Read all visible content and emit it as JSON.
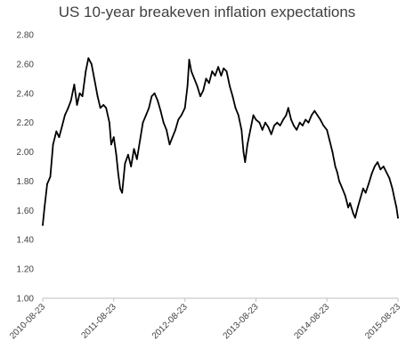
{
  "chart_data": {
    "type": "line",
    "title": "US 10-year breakeven inflation expectations",
    "xlabel": "",
    "ylabel": "",
    "ylim": [
      1.0,
      2.8
    ],
    "yticks": [
      "1.00",
      "1.20",
      "1.40",
      "1.60",
      "1.80",
      "2.00",
      "2.20",
      "2.40",
      "2.60",
      "2.80"
    ],
    "xticks": [
      "2010-08-23",
      "2011-08-23",
      "2012-08-23",
      "2013-08-23",
      "2014-08-23",
      "2015-08-23"
    ],
    "xlim": [
      "2010-08-23",
      "2015-08-23"
    ],
    "grid": false,
    "legend": "none",
    "series": [
      {
        "color": "#000000",
        "points": [
          [
            "2010-08-23",
            1.5
          ],
          [
            "2010-09-01",
            1.62
          ],
          [
            "2010-09-15",
            1.78
          ],
          [
            "2010-10-01",
            1.83
          ],
          [
            "2010-10-15",
            2.05
          ],
          [
            "2010-11-01",
            2.14
          ],
          [
            "2010-11-15",
            2.1
          ],
          [
            "2010-12-01",
            2.18
          ],
          [
            "2010-12-15",
            2.25
          ],
          [
            "2011-01-01",
            2.3
          ],
          [
            "2011-01-15",
            2.35
          ],
          [
            "2011-02-01",
            2.46
          ],
          [
            "2011-02-15",
            2.32
          ],
          [
            "2011-03-01",
            2.4
          ],
          [
            "2011-03-15",
            2.38
          ],
          [
            "2011-04-01",
            2.55
          ],
          [
            "2011-04-15",
            2.64
          ],
          [
            "2011-05-01",
            2.6
          ],
          [
            "2011-05-15",
            2.5
          ],
          [
            "2011-06-01",
            2.38
          ],
          [
            "2011-06-15",
            2.3
          ],
          [
            "2011-07-01",
            2.32
          ],
          [
            "2011-07-15",
            2.3
          ],
          [
            "2011-08-01",
            2.2
          ],
          [
            "2011-08-10",
            2.05
          ],
          [
            "2011-08-23",
            2.1
          ],
          [
            "2011-09-05",
            1.98
          ],
          [
            "2011-09-15",
            1.85
          ],
          [
            "2011-09-25",
            1.75
          ],
          [
            "2011-10-05",
            1.72
          ],
          [
            "2011-10-20",
            1.92
          ],
          [
            "2011-11-05",
            1.98
          ],
          [
            "2011-11-20",
            1.9
          ],
          [
            "2011-12-05",
            2.02
          ],
          [
            "2011-12-20",
            1.95
          ],
          [
            "2012-01-05",
            2.08
          ],
          [
            "2012-01-20",
            2.2
          ],
          [
            "2012-02-05",
            2.25
          ],
          [
            "2012-02-20",
            2.3
          ],
          [
            "2012-03-05",
            2.38
          ],
          [
            "2012-03-20",
            2.4
          ],
          [
            "2012-04-05",
            2.35
          ],
          [
            "2012-04-20",
            2.28
          ],
          [
            "2012-05-05",
            2.2
          ],
          [
            "2012-05-20",
            2.15
          ],
          [
            "2012-06-05",
            2.05
          ],
          [
            "2012-06-20",
            2.1
          ],
          [
            "2012-07-05",
            2.15
          ],
          [
            "2012-07-20",
            2.22
          ],
          [
            "2012-08-05",
            2.25
          ],
          [
            "2012-08-23",
            2.3
          ],
          [
            "2012-09-05",
            2.45
          ],
          [
            "2012-09-14",
            2.63
          ],
          [
            "2012-09-25",
            2.55
          ],
          [
            "2012-10-10",
            2.5
          ],
          [
            "2012-10-25",
            2.45
          ],
          [
            "2012-11-10",
            2.38
          ],
          [
            "2012-11-25",
            2.42
          ],
          [
            "2012-12-10",
            2.5
          ],
          [
            "2012-12-25",
            2.47
          ],
          [
            "2013-01-10",
            2.55
          ],
          [
            "2013-01-25",
            2.52
          ],
          [
            "2013-02-10",
            2.58
          ],
          [
            "2013-02-25",
            2.52
          ],
          [
            "2013-03-10",
            2.57
          ],
          [
            "2013-03-25",
            2.55
          ],
          [
            "2013-04-10",
            2.45
          ],
          [
            "2013-04-25",
            2.38
          ],
          [
            "2013-05-10",
            2.3
          ],
          [
            "2013-05-25",
            2.25
          ],
          [
            "2013-06-10",
            2.15
          ],
          [
            "2013-06-20",
            2.0
          ],
          [
            "2013-06-28",
            1.93
          ],
          [
            "2013-07-10",
            2.05
          ],
          [
            "2013-07-25",
            2.15
          ],
          [
            "2013-08-10",
            2.25
          ],
          [
            "2013-08-23",
            2.22
          ],
          [
            "2013-09-10",
            2.2
          ],
          [
            "2013-09-25",
            2.15
          ],
          [
            "2013-10-10",
            2.2
          ],
          [
            "2013-10-25",
            2.17
          ],
          [
            "2013-11-10",
            2.12
          ],
          [
            "2013-11-25",
            2.18
          ],
          [
            "2013-12-10",
            2.2
          ],
          [
            "2013-12-25",
            2.18
          ],
          [
            "2014-01-10",
            2.22
          ],
          [
            "2014-01-25",
            2.25
          ],
          [
            "2014-02-05",
            2.3
          ],
          [
            "2014-02-20",
            2.22
          ],
          [
            "2014-03-05",
            2.18
          ],
          [
            "2014-03-20",
            2.15
          ],
          [
            "2014-04-05",
            2.2
          ],
          [
            "2014-04-20",
            2.18
          ],
          [
            "2014-05-05",
            2.22
          ],
          [
            "2014-05-20",
            2.2
          ],
          [
            "2014-06-05",
            2.25
          ],
          [
            "2014-06-20",
            2.28
          ],
          [
            "2014-07-05",
            2.25
          ],
          [
            "2014-07-20",
            2.22
          ],
          [
            "2014-08-05",
            2.18
          ],
          [
            "2014-08-23",
            2.15
          ],
          [
            "2014-09-05",
            2.08
          ],
          [
            "2014-09-20",
            2.0
          ],
          [
            "2014-10-05",
            1.9
          ],
          [
            "2014-10-15",
            1.86
          ],
          [
            "2014-10-25",
            1.8
          ],
          [
            "2014-11-10",
            1.75
          ],
          [
            "2014-11-25",
            1.7
          ],
          [
            "2014-12-10",
            1.62
          ],
          [
            "2014-12-20",
            1.65
          ],
          [
            "2015-01-05",
            1.58
          ],
          [
            "2015-01-15",
            1.55
          ],
          [
            "2015-01-28",
            1.62
          ],
          [
            "2015-02-10",
            1.68
          ],
          [
            "2015-02-25",
            1.75
          ],
          [
            "2015-03-10",
            1.72
          ],
          [
            "2015-03-25",
            1.78
          ],
          [
            "2015-04-10",
            1.85
          ],
          [
            "2015-04-25",
            1.9
          ],
          [
            "2015-05-10",
            1.93
          ],
          [
            "2015-05-25",
            1.88
          ],
          [
            "2015-06-10",
            1.9
          ],
          [
            "2015-06-25",
            1.86
          ],
          [
            "2015-07-10",
            1.82
          ],
          [
            "2015-07-25",
            1.75
          ],
          [
            "2015-08-05",
            1.68
          ],
          [
            "2015-08-15",
            1.62
          ],
          [
            "2015-08-23",
            1.55
          ]
        ]
      }
    ]
  }
}
